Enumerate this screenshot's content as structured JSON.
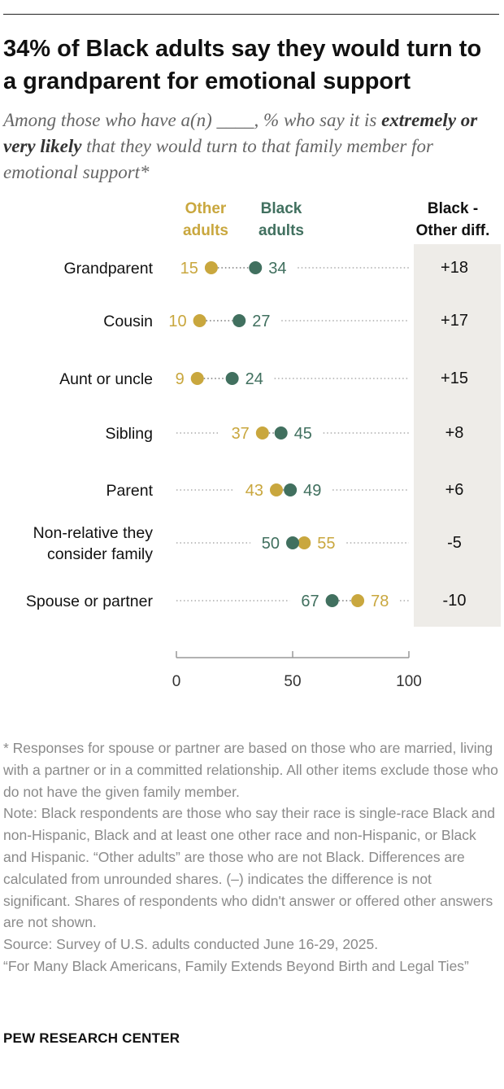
{
  "title": "34% of Black adults say they would turn to a grandparent for emotional support",
  "subtitle": {
    "part1": "Among those who have a(n) ____, % who say it is ",
    "emphasis": "extremely or very likely",
    "part2": " that they would turn to that family member for emotional support*"
  },
  "colors": {
    "other": "#C9A73E",
    "black": "#41705F",
    "diff_bg": "#EEECE8",
    "axis": "#999999"
  },
  "chart_data": {
    "type": "dot",
    "categories": [
      "Grandparent",
      "Cousin",
      "Aunt or uncle",
      "Sibling",
      "Parent",
      "Non-relative they consider family",
      "Spouse or partner"
    ],
    "category_lines": [
      [
        "Grandparent"
      ],
      [
        "Cousin"
      ],
      [
        "Aunt or uncle"
      ],
      [
        "Sibling"
      ],
      [
        "Parent"
      ],
      [
        "Non-relative they",
        "consider family"
      ],
      [
        "Spouse or partner"
      ]
    ],
    "series": [
      {
        "name": "Other adults",
        "legend_lines": [
          "Other",
          "adults"
        ],
        "values": [
          15,
          10,
          9,
          37,
          43,
          55,
          78
        ]
      },
      {
        "name": "Black adults",
        "legend_lines": [
          "Black",
          "adults"
        ],
        "values": [
          34,
          27,
          24,
          45,
          49,
          50,
          67
        ]
      }
    ],
    "diff_header": [
      "Black -",
      "Other diff."
    ],
    "diff": [
      "+18",
      "+17",
      "+15",
      "+8",
      "+6",
      "-5",
      "-10"
    ],
    "xlim": [
      0,
      100
    ],
    "xticks": [
      0,
      50,
      100
    ]
  },
  "notes": [
    "* Responses for spouse or partner are based on those who are married, living with a partner or in a committed relationship. All other items exclude those who do not have the given family member.",
    "Note: Black respondents are those who say their race is single-race Black and non-Hispanic, Black and at least one other race and non-Hispanic, or Black and Hispanic. “Other adults” are those who are not Black.  Differences are calculated from unrounded shares. (–) indicates the difference is not significant. Shares of respondents who didn't answer or offered other answers are not shown.",
    "Source: Survey of U.S. adults conducted June 16-29, 2025.",
    "“For Many Black Americans, Family Extends Beyond Birth and Legal Ties”"
  ],
  "footer": "PEW RESEARCH CENTER"
}
